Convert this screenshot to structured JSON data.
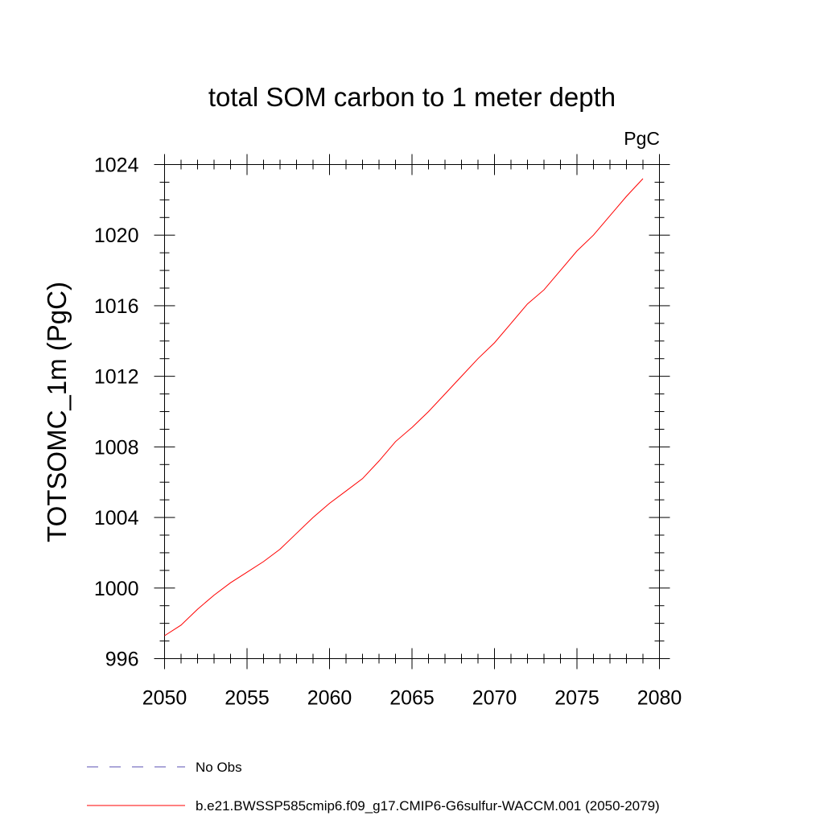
{
  "chart_data": {
    "type": "line",
    "title": "total SOM carbon to 1 meter depth",
    "units": "PgC",
    "ylabel": "TOTSOMC_1m  (PgC)",
    "xlabel": "",
    "xlim": [
      2050,
      2080
    ],
    "ylim": [
      996,
      1024
    ],
    "x_ticks": [
      2050,
      2055,
      2060,
      2065,
      2070,
      2075,
      2080
    ],
    "y_ticks": [
      996,
      1000,
      1004,
      1008,
      1012,
      1016,
      1020,
      1024
    ],
    "grid": false,
    "legend_position": "bottom",
    "legend": [
      {
        "label": "No Obs",
        "color": "#5a4fb3",
        "style": "dashed"
      },
      {
        "label": "b.e21.BWSSP585cmip6.f09_g17.CMIP6-G6sulfur-WACCM.001 (2050-2079)",
        "color": "#ff0000",
        "style": "solid"
      }
    ],
    "series": [
      {
        "name": "b.e21.BWSSP585cmip6.f09_g17.CMIP6-G6sulfur-WACCM.001 (2050-2079)",
        "color": "#ff0000",
        "x": [
          2050,
          2051,
          2052,
          2053,
          2054,
          2055,
          2056,
          2057,
          2058,
          2059,
          2060,
          2061,
          2062,
          2063,
          2064,
          2065,
          2066,
          2067,
          2068,
          2069,
          2070,
          2071,
          2072,
          2073,
          2074,
          2075,
          2076,
          2077,
          2078,
          2079
        ],
        "values": [
          997.3,
          997.9,
          998.8,
          999.6,
          1000.3,
          1000.9,
          1001.5,
          1002.2,
          1003.1,
          1004.0,
          1004.8,
          1005.5,
          1006.2,
          1007.2,
          1008.3,
          1009.1,
          1010.0,
          1011.0,
          1012.0,
          1013.0,
          1013.9,
          1015.0,
          1016.1,
          1016.9,
          1018.0,
          1019.1,
          1020.0,
          1021.1,
          1022.2,
          1023.2
        ]
      }
    ]
  }
}
